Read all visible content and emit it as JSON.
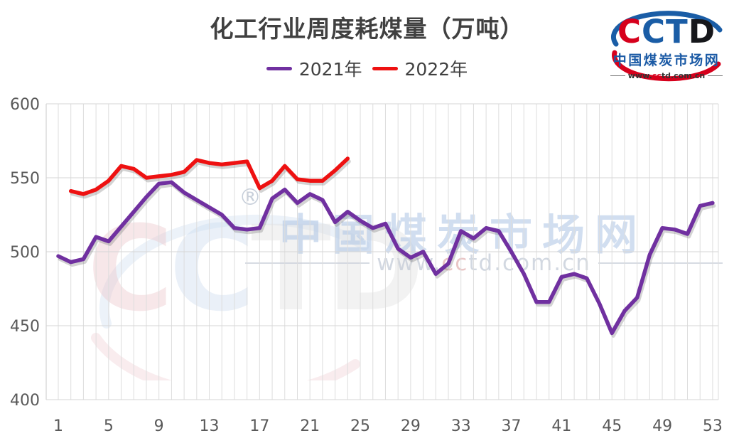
{
  "title": "化工行业周度耗煤量（万吨）",
  "legend": [
    {
      "label": "2021年",
      "color": "#7030A0"
    },
    {
      "label": "2022年",
      "color": "#EE1111"
    }
  ],
  "logo": {
    "letters": [
      {
        "char": "C",
        "color": "#D6001C"
      },
      {
        "char": "C",
        "color": "#1A5DA6"
      },
      {
        "char": "T",
        "color": "#1A5DA6"
      },
      {
        "char": "D",
        "color": "#16171B"
      }
    ],
    "site_name": "中国煤炭市场网",
    "url_prefix": "www.",
    "url_cc": "cc",
    "url_suffix": "td.com.cn",
    "arc_blue": "#1A5DA6",
    "arc_red": "#D6001C"
  },
  "watermark": {
    "reg_mark": "®",
    "brand_text": "中国煤炭市场网",
    "url_prefix": "www.",
    "url_cc": "cc",
    "url_suffix": "td.com.cn",
    "letters": [
      {
        "char": "C",
        "color": "#DE9FA6"
      },
      {
        "char": "C",
        "color": "#A8C4E4"
      },
      {
        "char": "T",
        "color": "#C9C9C9"
      },
      {
        "char": "D",
        "color": "#C9C9C9"
      }
    ]
  },
  "chart_data": {
    "type": "line",
    "title": "化工行业周度耗煤量（万吨）",
    "xlabel": "",
    "ylabel": "",
    "x_unit": "week",
    "x_range": [
      1,
      53
    ],
    "x_tick_labels": [
      1,
      5,
      9,
      13,
      17,
      21,
      25,
      29,
      33,
      37,
      41,
      45,
      49,
      53
    ],
    "ylim": [
      400,
      600
    ],
    "y_ticks": [
      400,
      450,
      500,
      550,
      600
    ],
    "grid": {
      "vertical": "every week",
      "horizontal": "every 50"
    },
    "legend_position": "top-center",
    "series": [
      {
        "name": "2021年",
        "color": "#7030A0",
        "start_week": 1,
        "values": [
          497,
          493,
          495,
          510,
          507,
          517,
          527,
          537,
          546,
          547,
          540,
          535,
          530,
          525,
          516,
          515,
          516,
          536,
          542,
          533,
          539,
          535,
          520,
          527,
          521,
          516,
          519,
          502,
          496,
          500,
          485,
          492,
          514,
          509,
          516,
          514,
          500,
          485,
          466,
          466,
          483,
          485,
          482,
          465,
          445,
          460,
          469,
          498,
          516,
          515,
          512,
          531,
          533
        ]
      },
      {
        "name": "2022年",
        "color": "#EE1111",
        "start_week": 2,
        "values": [
          541,
          539,
          542,
          548,
          558,
          556,
          550,
          551,
          552,
          554,
          562,
          560,
          559,
          560,
          561,
          543,
          548,
          558,
          549,
          548,
          548,
          555,
          563
        ]
      }
    ]
  }
}
